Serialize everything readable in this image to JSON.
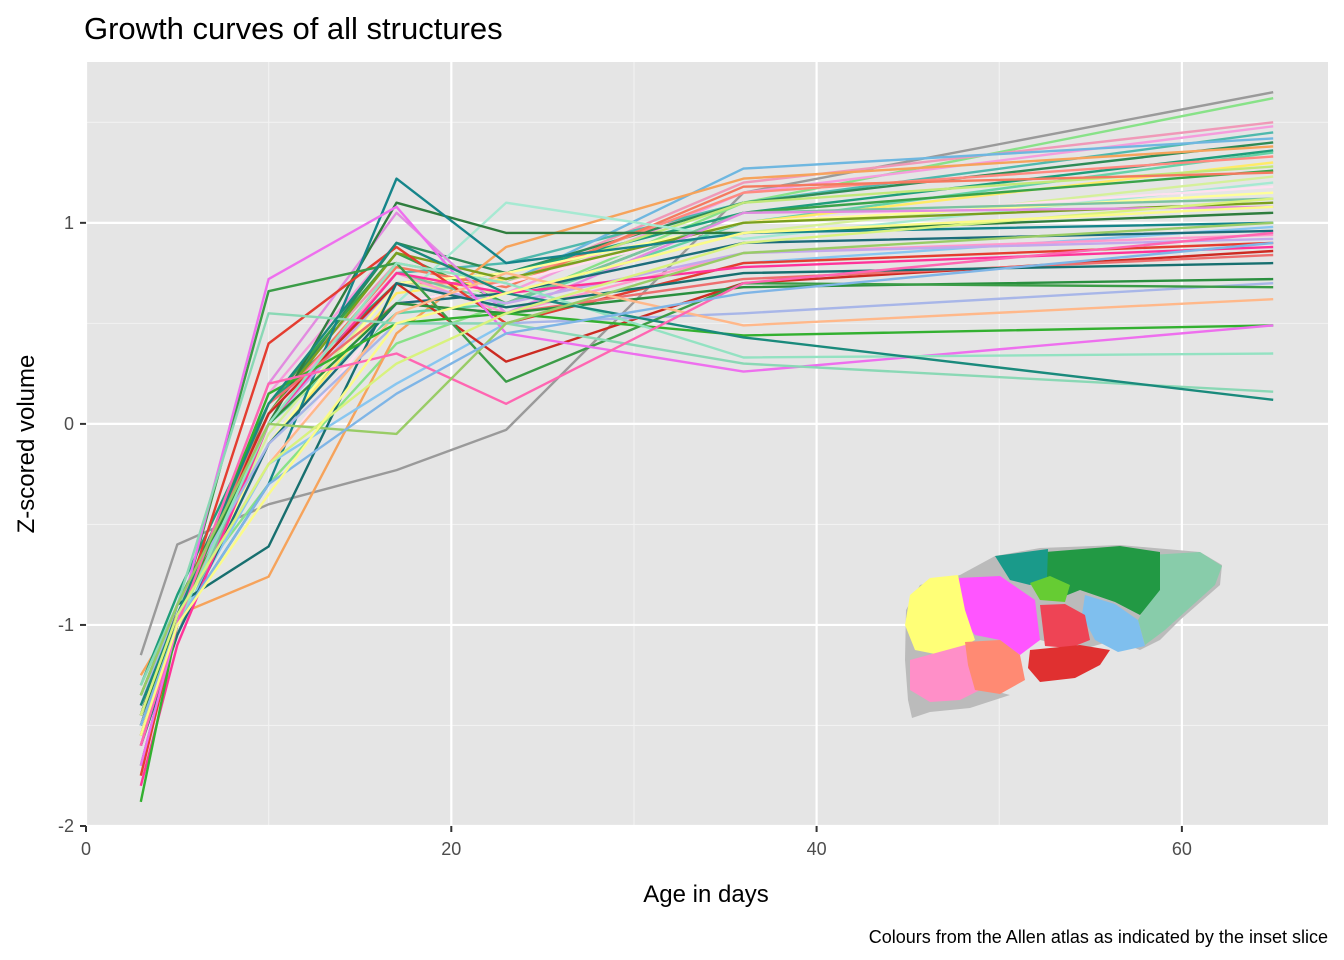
{
  "chart_data": {
    "type": "line",
    "title": "Growth curves of all structures",
    "xlabel": "Age in days",
    "ylabel": "Z-scored volume",
    "caption": "Colours from the Allen atlas as indicated by the inset slice",
    "xlim": [
      0,
      68
    ],
    "ylim": [
      -2,
      1.8
    ],
    "x_ticks": [
      0,
      20,
      40,
      60
    ],
    "y_ticks": [
      -2,
      -1,
      0,
      1
    ],
    "x_tick_labels": [
      "0",
      "20",
      "40",
      "60"
    ],
    "y_tick_labels": [
      "-2",
      "-1",
      "0",
      "1"
    ],
    "grid": true,
    "x": [
      3,
      5,
      10,
      17,
      23,
      36,
      65
    ],
    "series": [
      {
        "color": "#9a9a9a",
        "values": [
          -1.15,
          -0.6,
          -0.4,
          -0.23,
          -0.03,
          1.15,
          1.65
        ]
      },
      {
        "color": "#88e288",
        "values": [
          -1.35,
          -0.9,
          -0.3,
          0.4,
          0.6,
          1.1,
          1.62
        ]
      },
      {
        "color": "#f099b8",
        "values": [
          -1.6,
          -1.0,
          0.1,
          0.8,
          0.7,
          1.2,
          1.5
        ]
      },
      {
        "color": "#f59ddd",
        "values": [
          -1.55,
          -1.0,
          0.15,
          0.9,
          0.65,
          1.15,
          1.48
        ]
      },
      {
        "color": "#4fb9ad",
        "values": [
          -1.4,
          -0.95,
          0.05,
          0.75,
          0.8,
          1.1,
          1.45
        ]
      },
      {
        "color": "#6fb7e0",
        "values": [
          -1.5,
          -1.0,
          0.0,
          0.6,
          0.7,
          1.27,
          1.42
        ]
      },
      {
        "color": "#2e8b57",
        "values": [
          -1.45,
          -0.9,
          0.05,
          0.9,
          0.75,
          1.1,
          1.4
        ]
      },
      {
        "color": "#f6a35b",
        "values": [
          -1.25,
          -0.95,
          -0.76,
          0.45,
          0.88,
          1.22,
          1.38
        ]
      },
      {
        "color": "#1f9e7a",
        "values": [
          -1.3,
          -0.85,
          0.1,
          0.7,
          0.75,
          1.05,
          1.36
        ]
      },
      {
        "color": "#66d2a6",
        "values": [
          -1.5,
          -1.0,
          0.0,
          0.55,
          0.6,
          1.0,
          1.35
        ]
      },
      {
        "color": "#ff8a80",
        "values": [
          -1.6,
          -1.05,
          0.05,
          0.7,
          0.7,
          1.15,
          1.33
        ]
      },
      {
        "color": "#ffeb66",
        "values": [
          -1.55,
          -0.95,
          -0.1,
          0.65,
          0.72,
          1.0,
          1.3
        ]
      },
      {
        "color": "#c1e87a",
        "values": [
          -1.45,
          -1.0,
          0.0,
          0.8,
          0.7,
          1.1,
          1.28
        ]
      },
      {
        "color": "#3aa34a",
        "values": [
          -1.7,
          -1.0,
          0.1,
          0.85,
          0.6,
          1.05,
          1.26
        ]
      },
      {
        "color": "#f57a5f",
        "values": [
          -1.4,
          -0.95,
          0.05,
          0.78,
          0.68,
          1.18,
          1.25
        ]
      },
      {
        "color": "#d5f09a",
        "values": [
          -1.5,
          -1.0,
          -0.05,
          0.7,
          0.65,
          0.95,
          1.23
        ]
      },
      {
        "color": "#a6e9d2",
        "values": [
          -1.3,
          -0.9,
          0.0,
          0.6,
          1.1,
          0.92,
          1.2
        ]
      },
      {
        "color": "#ffe0f0",
        "values": [
          -1.4,
          -1.0,
          -0.2,
          0.6,
          0.7,
          1.0,
          1.18
        ]
      },
      {
        "color": "#ffff99",
        "values": [
          -1.55,
          -1.0,
          -0.1,
          0.7,
          0.75,
          1.0,
          1.15
        ]
      },
      {
        "color": "#7cc3a0",
        "values": [
          -1.6,
          -1.05,
          0.0,
          0.75,
          0.6,
          1.05,
          1.12
        ]
      },
      {
        "color": "#7a9f1f",
        "values": [
          -1.4,
          -0.95,
          0.05,
          0.85,
          0.72,
          1.0,
          1.1
        ]
      },
      {
        "color": "#e28be0",
        "values": [
          -1.5,
          -1.0,
          0.2,
          1.05,
          0.55,
          1.05,
          1.08
        ]
      },
      {
        "color": "#2f7d3e",
        "values": [
          -1.35,
          -0.9,
          0.0,
          1.1,
          0.95,
          0.95,
          1.05
        ]
      },
      {
        "color": "#15858a",
        "values": [
          -1.45,
          -1.0,
          -0.3,
          1.22,
          0.8,
          0.95,
          1.0
        ]
      },
      {
        "color": "#88c6f0",
        "values": [
          -1.5,
          -1.0,
          -0.2,
          0.2,
          0.5,
          0.8,
          0.98
        ]
      },
      {
        "color": "#1c6c7a",
        "values": [
          -1.6,
          -1.05,
          -0.1,
          0.6,
          0.65,
          0.9,
          0.96
        ]
      },
      {
        "color": "#ff99cc",
        "values": [
          -1.55,
          -1.0,
          0.05,
          0.75,
          0.55,
          0.85,
          0.94
        ]
      },
      {
        "color": "#c3a8ec",
        "values": [
          -1.4,
          -0.95,
          0.0,
          0.7,
          0.6,
          0.85,
          0.92
        ]
      },
      {
        "color": "#e43d30",
        "values": [
          -1.75,
          -1.0,
          0.4,
          0.88,
          0.5,
          0.8,
          0.9
        ]
      },
      {
        "color": "#ff3399",
        "values": [
          -1.8,
          -1.1,
          0.0,
          0.75,
          0.65,
          0.78,
          0.88
        ]
      },
      {
        "color": "#cc2b22",
        "values": [
          -1.5,
          -0.95,
          0.05,
          0.7,
          0.31,
          0.7,
          0.86
        ]
      },
      {
        "color": "#ee6f6f",
        "values": [
          -1.6,
          -1.0,
          0.1,
          0.6,
          0.55,
          0.72,
          0.84
        ]
      },
      {
        "color": "#176f6f",
        "values": [
          -1.45,
          -0.9,
          -0.61,
          0.7,
          0.58,
          0.75,
          0.8
        ]
      },
      {
        "color": "#2a8f3f",
        "values": [
          -1.5,
          -0.95,
          0.0,
          0.6,
          0.55,
          0.68,
          0.72
        ]
      },
      {
        "color": "#a8b6e8",
        "values": [
          -1.4,
          -0.9,
          -0.1,
          0.5,
          0.5,
          0.55,
          0.7
        ]
      },
      {
        "color": "#3b9c47",
        "values": [
          -1.55,
          -1.0,
          0.66,
          0.8,
          0.21,
          0.7,
          0.68
        ]
      },
      {
        "color": "#ffb88a",
        "values": [
          -1.45,
          -0.95,
          -0.2,
          0.55,
          0.75,
          0.49,
          0.62
        ]
      },
      {
        "color": "#33b030",
        "values": [
          -1.88,
          -1.0,
          0.15,
          0.5,
          0.55,
          0.44,
          0.49
        ]
      },
      {
        "color": "#ee6fee",
        "values": [
          -1.7,
          -1.0,
          0.72,
          1.08,
          0.45,
          0.26,
          0.49
        ]
      },
      {
        "color": "#93e2c2",
        "values": [
          -1.5,
          -1.0,
          0.0,
          0.8,
          0.7,
          0.33,
          0.35
        ]
      },
      {
        "color": "#8ad8b5",
        "values": [
          -1.3,
          -0.9,
          0.55,
          0.5,
          0.5,
          0.3,
          0.16
        ]
      },
      {
        "color": "#1a8a7c",
        "values": [
          -1.4,
          -0.95,
          0.1,
          0.9,
          0.65,
          0.43,
          0.12
        ]
      },
      {
        "color": "#ff66b2",
        "values": [
          -1.6,
          -1.0,
          0.2,
          0.35,
          0.1,
          0.7,
          0.95
        ]
      },
      {
        "color": "#99cc66",
        "values": [
          -1.35,
          -0.9,
          0.0,
          -0.05,
          0.5,
          0.85,
          1.0
        ]
      },
      {
        "color": "#7fb5e6",
        "values": [
          -1.5,
          -1.0,
          -0.3,
          0.15,
          0.45,
          0.65,
          0.9
        ]
      },
      {
        "color": "#d8f27e",
        "values": [
          -1.45,
          -0.95,
          -0.2,
          0.3,
          0.55,
          0.9,
          1.12
        ]
      },
      {
        "color": "#fbfb88",
        "values": [
          -1.55,
          -1.0,
          -0.35,
          0.5,
          0.65,
          0.95,
          1.08
        ]
      }
    ]
  },
  "inset": {
    "colors": [
      "#ffff77",
      "#ff55ff",
      "#ff8fc8",
      "#ff8a73",
      "#ee4455",
      "#e03030",
      "#7fbfee",
      "#229944",
      "#1a9a8a",
      "#88ccaa",
      "#66cc33",
      "#bbbbbb"
    ]
  }
}
